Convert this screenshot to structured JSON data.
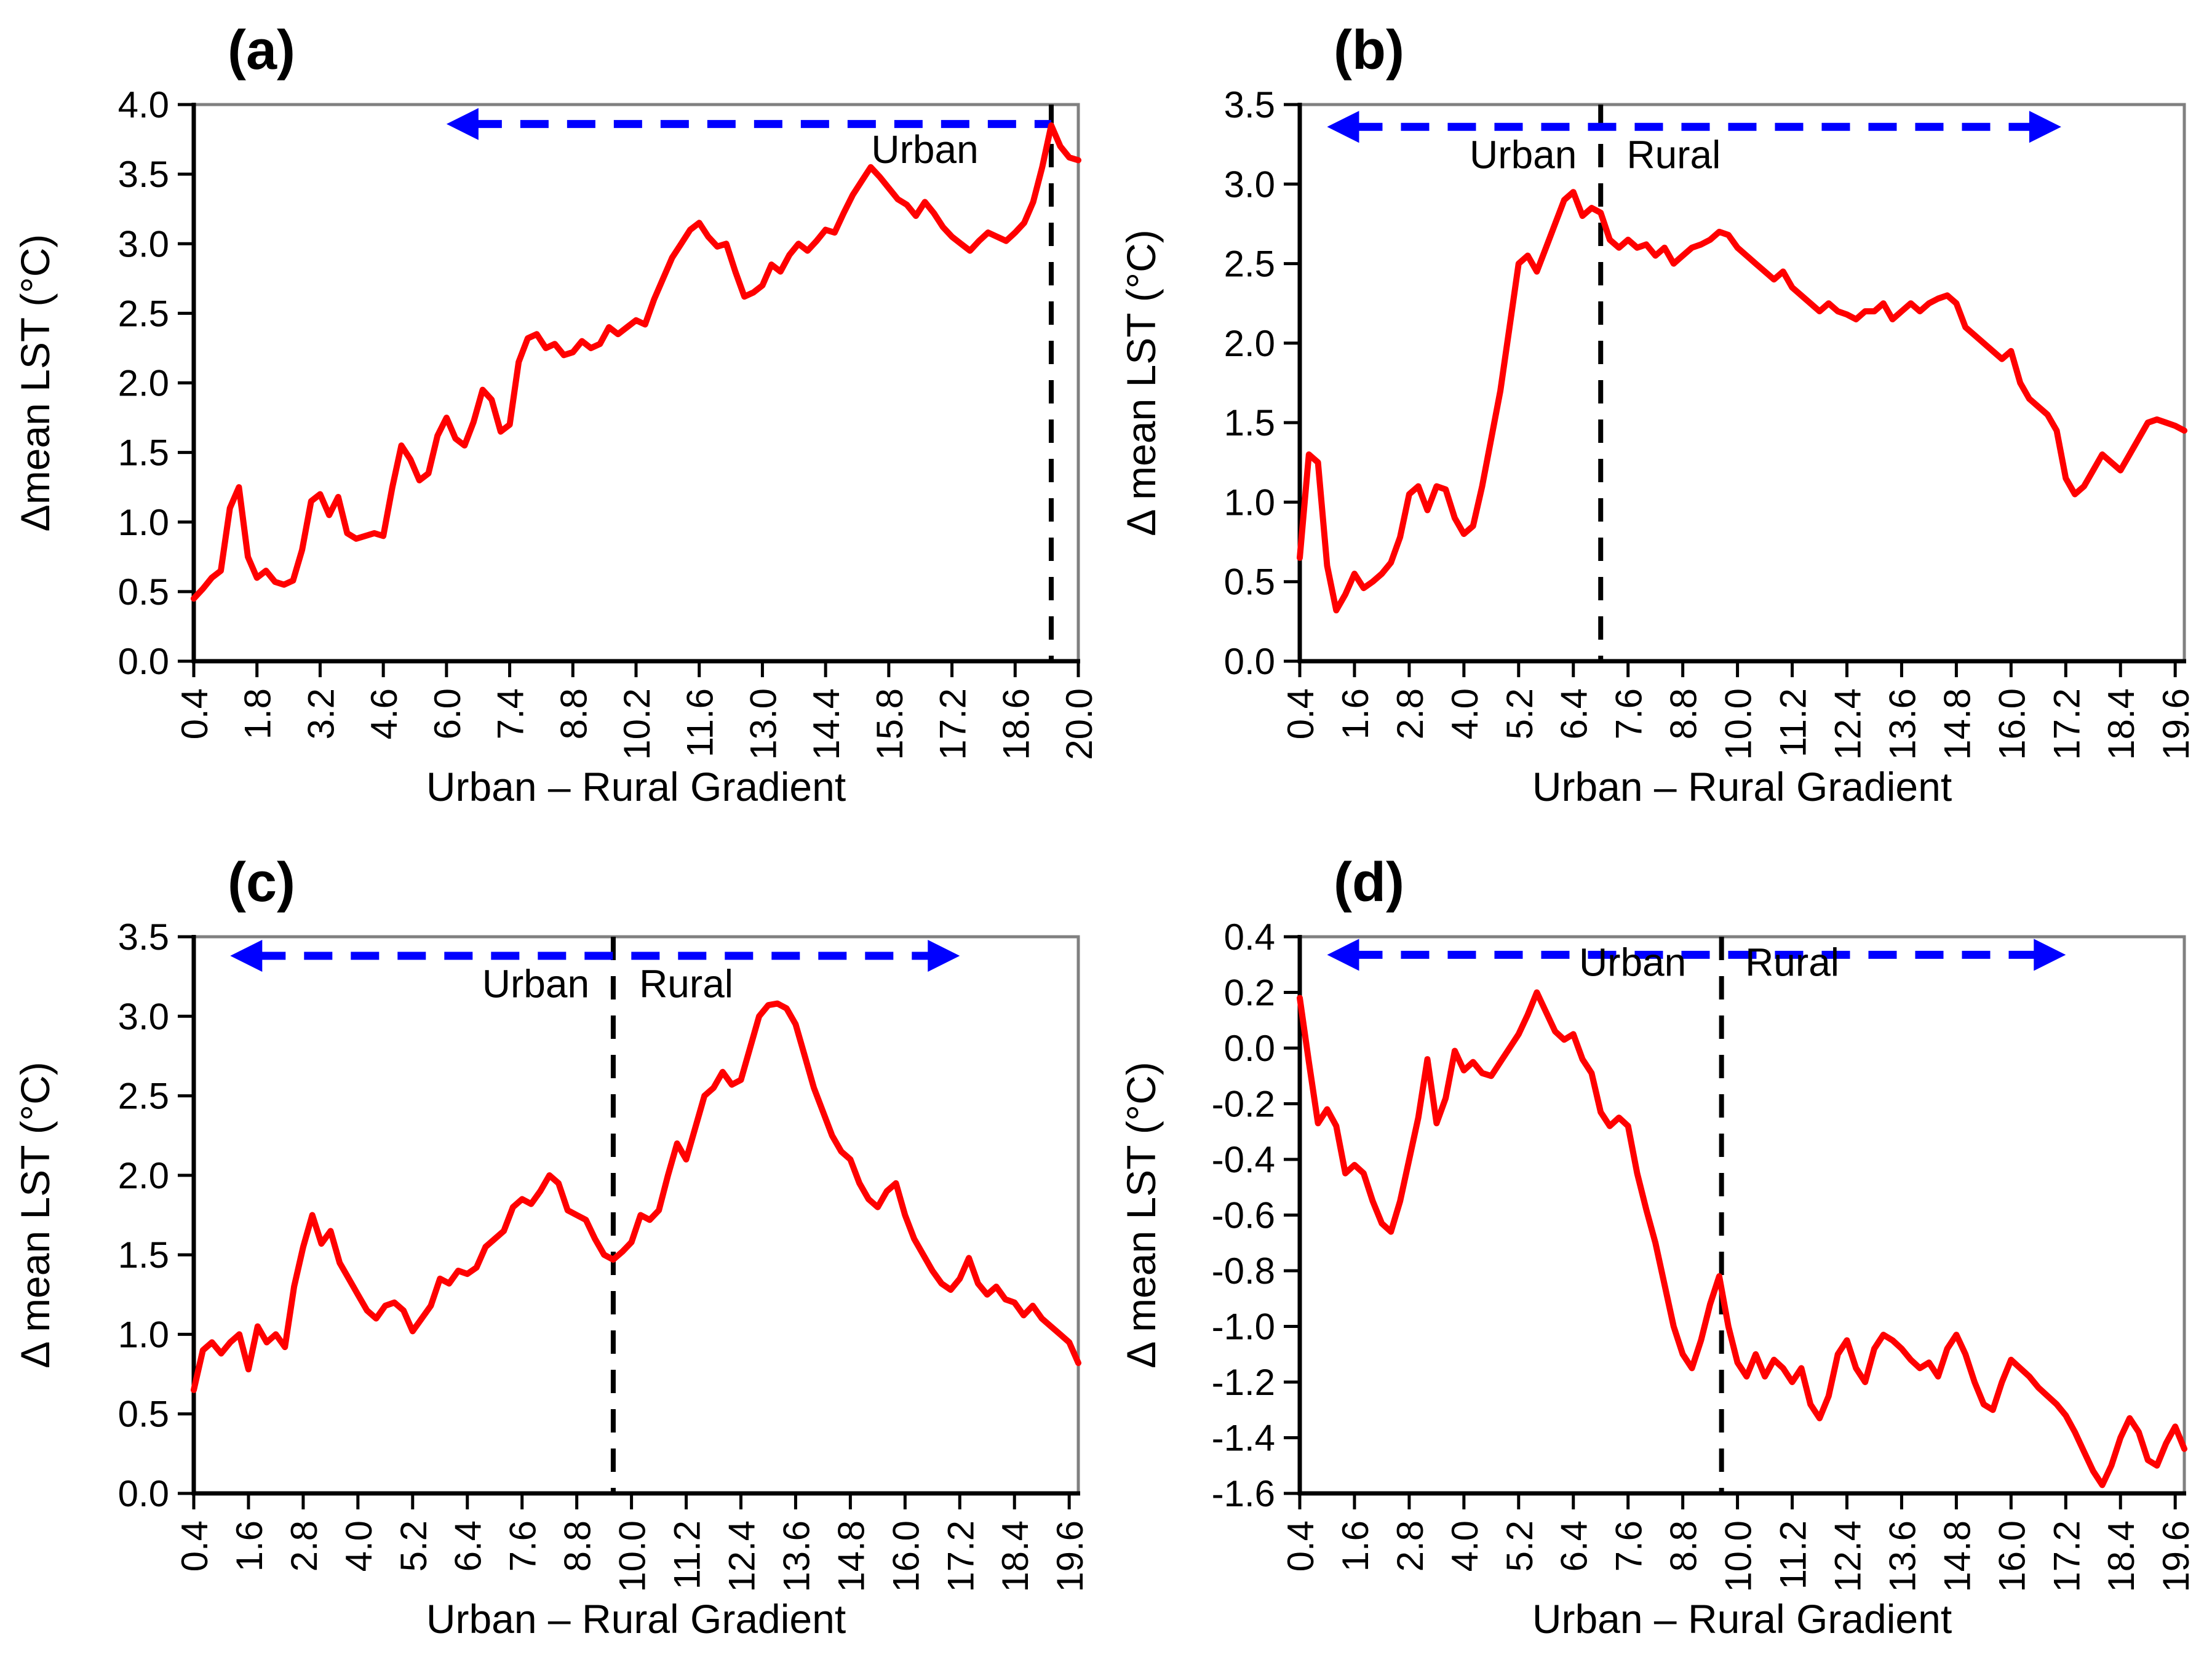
{
  "figure_title": "",
  "style": {
    "line_color": "#ff0000",
    "arrow_color": "#0000ff",
    "divider_color": "#000000",
    "frame_color": "#808080",
    "axis_color": "#000000",
    "text_color": "#000000",
    "background": "#ffffff"
  },
  "chart_data": [
    {
      "id": "a",
      "type": "line",
      "panel_label": "(a)",
      "xlabel": "Urban – Rural Gradient",
      "ylabel": "Δmean LST (°C)",
      "xlim": [
        0.4,
        20.0
      ],
      "ylim": [
        0.0,
        4.0
      ],
      "x_ticks": [
        "0.4",
        "1.8",
        "3.2",
        "4.6",
        "6.0",
        "7.4",
        "8.8",
        "10.2",
        "11.6",
        "13.0",
        "14.4",
        "15.8",
        "17.2",
        "18.6",
        "20.0"
      ],
      "y_ticks": [
        "0.0",
        "0.5",
        "1.0",
        "1.5",
        "2.0",
        "2.5",
        "3.0",
        "3.5",
        "4.0"
      ],
      "x_start": 0.4,
      "x_step": 0.2,
      "grid": false,
      "legend": "none",
      "series_name": "Δmean LST",
      "values": [
        0.45,
        0.52,
        0.6,
        0.65,
        1.1,
        1.25,
        0.75,
        0.6,
        0.65,
        0.57,
        0.55,
        0.58,
        0.8,
        1.15,
        1.2,
        1.05,
        1.18,
        0.92,
        0.88,
        0.9,
        0.92,
        0.9,
        1.25,
        1.55,
        1.45,
        1.3,
        1.35,
        1.62,
        1.75,
        1.6,
        1.55,
        1.72,
        1.95,
        1.88,
        1.65,
        1.7,
        2.15,
        2.32,
        2.35,
        2.25,
        2.28,
        2.2,
        2.22,
        2.3,
        2.25,
        2.28,
        2.4,
        2.35,
        2.4,
        2.45,
        2.42,
        2.6,
        2.75,
        2.9,
        3.0,
        3.1,
        3.15,
        3.05,
        2.98,
        3.0,
        2.8,
        2.62,
        2.65,
        2.7,
        2.85,
        2.8,
        2.92,
        3.0,
        2.95,
        3.02,
        3.1,
        3.08,
        3.22,
        3.35,
        3.45,
        3.55,
        3.48,
        3.4,
        3.32,
        3.28,
        3.2,
        3.3,
        3.22,
        3.12,
        3.05,
        3.0,
        2.95,
        3.02,
        3.08,
        3.05,
        3.02,
        3.08,
        3.15,
        3.3,
        3.55,
        3.85,
        3.7,
        3.62,
        3.6
      ],
      "divider_x": 19.4,
      "arrow": {
        "x1": 6.0,
        "x2": 19.4,
        "y": 3.86,
        "head_left": true,
        "head_right": false
      },
      "region_labels": [
        {
          "name": "urban-region-label",
          "text": "Urban",
          "x": 16.6,
          "y": 3.58
        }
      ]
    },
    {
      "id": "b",
      "type": "line",
      "panel_label": "(b)",
      "xlabel": "Urban – Rural Gradient",
      "ylabel": "Δ mean LST (°C)",
      "xlim": [
        0.4,
        19.8
      ],
      "ylim": [
        0.0,
        3.5
      ],
      "x_ticks": [
        "0.4",
        "1.6",
        "2.8",
        "4.0",
        "5.2",
        "6.4",
        "7.6",
        "8.8",
        "10.0",
        "11.2",
        "12.4",
        "13.6",
        "14.8",
        "16.0",
        "17.2",
        "18.4",
        "19.6"
      ],
      "y_ticks": [
        "0.0",
        "0.5",
        "1.0",
        "1.5",
        "2.0",
        "2.5",
        "3.0",
        "3.5"
      ],
      "x_start": 0.4,
      "x_step": 0.2,
      "grid": false,
      "legend": "none",
      "series_name": "Δ mean LST",
      "values": [
        0.65,
        1.3,
        1.25,
        0.6,
        0.32,
        0.42,
        0.55,
        0.46,
        0.5,
        0.55,
        0.62,
        0.78,
        1.05,
        1.1,
        0.95,
        1.1,
        1.08,
        0.9,
        0.8,
        0.85,
        1.1,
        1.4,
        1.7,
        2.1,
        2.5,
        2.55,
        2.45,
        2.6,
        2.75,
        2.9,
        2.95,
        2.8,
        2.85,
        2.82,
        2.65,
        2.6,
        2.65,
        2.6,
        2.62,
        2.55,
        2.6,
        2.5,
        2.55,
        2.6,
        2.62,
        2.65,
        2.7,
        2.68,
        2.6,
        2.55,
        2.5,
        2.45,
        2.4,
        2.45,
        2.35,
        2.3,
        2.25,
        2.2,
        2.25,
        2.2,
        2.18,
        2.15,
        2.2,
        2.2,
        2.25,
        2.15,
        2.2,
        2.25,
        2.2,
        2.25,
        2.28,
        2.3,
        2.25,
        2.1,
        2.05,
        2.0,
        1.95,
        1.9,
        1.95,
        1.75,
        1.65,
        1.6,
        1.55,
        1.45,
        1.15,
        1.05,
        1.1,
        1.2,
        1.3,
        1.25,
        1.2,
        1.3,
        1.4,
        1.5,
        1.52,
        1.5,
        1.48,
        1.45
      ],
      "divider_x": 7.0,
      "arrow": {
        "x1": 1.0,
        "x2": 17.1,
        "y": 3.36,
        "head_left": true,
        "head_right": true
      },
      "region_labels": [
        {
          "name": "urban-region-label",
          "text": "Urban",
          "x": 5.3,
          "y": 3.1
        },
        {
          "name": "rural-region-label",
          "text": "Rural",
          "x": 8.6,
          "y": 3.1
        }
      ]
    },
    {
      "id": "c",
      "type": "line",
      "panel_label": "(c)",
      "xlabel": "Urban – Rural Gradient",
      "ylabel": "Δ mean LST (°C)",
      "xlim": [
        0.4,
        19.8
      ],
      "ylim": [
        0.0,
        3.5
      ],
      "x_ticks": [
        "0.4",
        "1.6",
        "2.8",
        "4.0",
        "5.2",
        "6.4",
        "7.6",
        "8.8",
        "10.0",
        "11.2",
        "12.4",
        "13.6",
        "14.8",
        "16.0",
        "17.2",
        "18.4",
        "19.6"
      ],
      "y_ticks": [
        "0.0",
        "0.5",
        "1.0",
        "1.5",
        "2.0",
        "2.5",
        "3.0",
        "3.5"
      ],
      "x_start": 0.4,
      "x_step": 0.2,
      "grid": false,
      "legend": "none",
      "series_name": "Δ mean LST",
      "values": [
        0.65,
        0.9,
        0.95,
        0.88,
        0.95,
        1.0,
        0.78,
        1.05,
        0.95,
        1.0,
        0.92,
        1.3,
        1.55,
        1.75,
        1.57,
        1.65,
        1.45,
        1.35,
        1.25,
        1.15,
        1.1,
        1.18,
        1.2,
        1.15,
        1.02,
        1.1,
        1.18,
        1.35,
        1.32,
        1.4,
        1.38,
        1.42,
        1.55,
        1.6,
        1.65,
        1.8,
        1.85,
        1.82,
        1.9,
        2.0,
        1.95,
        1.78,
        1.75,
        1.72,
        1.6,
        1.5,
        1.47,
        1.52,
        1.58,
        1.75,
        1.72,
        1.78,
        2.0,
        2.2,
        2.1,
        2.3,
        2.5,
        2.55,
        2.65,
        2.57,
        2.6,
        2.8,
        3.0,
        3.07,
        3.08,
        3.05,
        2.95,
        2.75,
        2.55,
        2.4,
        2.25,
        2.15,
        2.1,
        1.95,
        1.85,
        1.8,
        1.9,
        1.95,
        1.75,
        1.6,
        1.5,
        1.4,
        1.32,
        1.28,
        1.35,
        1.48,
        1.32,
        1.25,
        1.3,
        1.22,
        1.2,
        1.12,
        1.18,
        1.1,
        1.05,
        1.0,
        0.95,
        0.82
      ],
      "divider_x": 9.6,
      "arrow": {
        "x1": 1.2,
        "x2": 17.2,
        "y": 3.38,
        "head_left": true,
        "head_right": true
      },
      "region_labels": [
        {
          "name": "urban-region-label",
          "text": "Urban",
          "x": 7.9,
          "y": 3.12
        },
        {
          "name": "rural-region-label",
          "text": "Rural",
          "x": 11.2,
          "y": 3.12
        }
      ]
    },
    {
      "id": "d",
      "type": "line",
      "panel_label": "(d)",
      "xlabel": "Urban – Rural Gradient",
      "ylabel": "Δ mean LST (°C)",
      "xlim": [
        0.4,
        19.8
      ],
      "ylim": [
        -1.6,
        0.4
      ],
      "x_ticks": [
        "0.4",
        "1.6",
        "2.8",
        "4.0",
        "5.2",
        "6.4",
        "7.6",
        "8.8",
        "10.0",
        "11.2",
        "12.4",
        "13.6",
        "14.8",
        "16.0",
        "17.2",
        "18.4",
        "19.6"
      ],
      "y_ticks": [
        "-1.6",
        "-1.4",
        "-1.2",
        "-1.0",
        "-0.8",
        "-0.6",
        "-0.4",
        "-0.2",
        "0.0",
        "0.2",
        "0.4"
      ],
      "x_start": 0.4,
      "x_step": 0.2,
      "grid": false,
      "legend": "none",
      "series_name": "Δ mean LST",
      "values": [
        0.18,
        -0.05,
        -0.27,
        -0.22,
        -0.28,
        -0.45,
        -0.42,
        -0.45,
        -0.55,
        -0.63,
        -0.66,
        -0.55,
        -0.4,
        -0.25,
        -0.04,
        -0.27,
        -0.18,
        -0.01,
        -0.08,
        -0.05,
        -0.09,
        -0.1,
        -0.05,
        0.0,
        0.05,
        0.12,
        0.2,
        0.13,
        0.06,
        0.03,
        0.05,
        -0.04,
        -0.09,
        -0.23,
        -0.28,
        -0.25,
        -0.28,
        -0.45,
        -0.58,
        -0.7,
        -0.85,
        -1.0,
        -1.1,
        -1.15,
        -1.05,
        -0.92,
        -0.82,
        -1.0,
        -1.13,
        -1.18,
        -1.1,
        -1.18,
        -1.12,
        -1.15,
        -1.2,
        -1.15,
        -1.28,
        -1.33,
        -1.25,
        -1.1,
        -1.05,
        -1.15,
        -1.2,
        -1.08,
        -1.03,
        -1.05,
        -1.08,
        -1.12,
        -1.15,
        -1.13,
        -1.18,
        -1.08,
        -1.03,
        -1.1,
        -1.2,
        -1.28,
        -1.3,
        -1.2,
        -1.12,
        -1.15,
        -1.18,
        -1.22,
        -1.25,
        -1.28,
        -1.32,
        -1.38,
        -1.45,
        -1.52,
        -1.57,
        -1.5,
        -1.4,
        -1.33,
        -1.38,
        -1.48,
        -1.5,
        -1.42,
        -1.36,
        -1.44
      ],
      "divider_x": 9.65,
      "arrow": {
        "x1": 1.0,
        "x2": 17.2,
        "y": 0.335,
        "head_left": true,
        "head_right": true
      },
      "region_labels": [
        {
          "name": "urban-region-label",
          "text": "Urban",
          "x": 7.7,
          "y": 0.26
        },
        {
          "name": "rural-region-label",
          "text": "Rural",
          "x": 11.2,
          "y": 0.26
        }
      ]
    }
  ]
}
